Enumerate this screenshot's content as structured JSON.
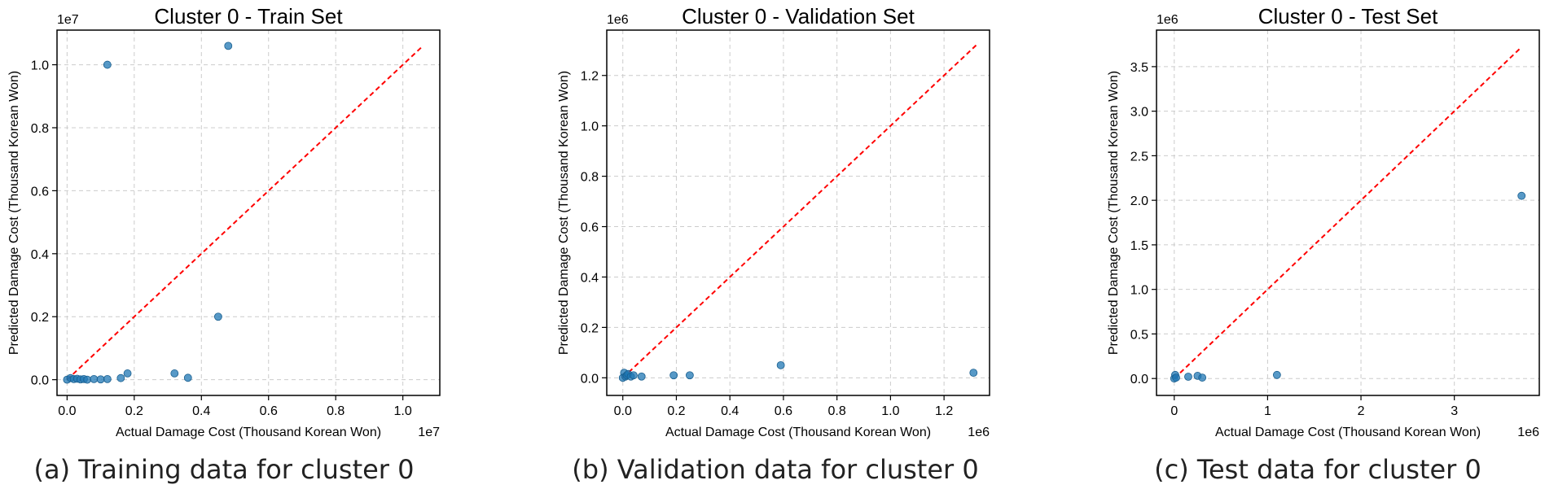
{
  "captions": [
    "(a) Training data for cluster 0",
    "(b) Validation data for cluster 0",
    "(c) Test data for cluster 0"
  ],
  "chart_data": [
    {
      "type": "scatter",
      "title": "Cluster 0 - Train Set",
      "xlabel": "Actual Damage Cost (Thousand Korean Won)",
      "ylabel": "Predicted Damage Cost (Thousand Korean Won)",
      "x_offset_label": "1e7",
      "y_offset_label": "1e7",
      "xlim": [
        -0.03,
        1.11
      ],
      "ylim": [
        -0.05,
        1.11
      ],
      "xticks": [
        0.0,
        0.2,
        0.4,
        0.6,
        0.8,
        1.0
      ],
      "xtick_labels": [
        "0.0",
        "0.2",
        "0.4",
        "0.6",
        "0.8",
        "1.0"
      ],
      "yticks": [
        0.0,
        0.2,
        0.4,
        0.6,
        0.8,
        1.0
      ],
      "ytick_labels": [
        "0.0",
        "0.2",
        "0.4",
        "0.6",
        "0.8",
        "1.0"
      ],
      "grid": true,
      "reference_line": {
        "from": [
          0.0,
          0.0
        ],
        "to": [
          1.06,
          1.06
        ],
        "style": "dashed",
        "color": "#ff0000"
      },
      "point_color": "#1f77b4",
      "points": [
        [
          0.0,
          0.0
        ],
        [
          0.01,
          0.005
        ],
        [
          0.02,
          0.002
        ],
        [
          0.03,
          0.003
        ],
        [
          0.04,
          0.001
        ],
        [
          0.05,
          0.002
        ],
        [
          0.06,
          0.0
        ],
        [
          0.08,
          0.002
        ],
        [
          0.1,
          0.001
        ],
        [
          0.12,
          0.002
        ],
        [
          0.16,
          0.005
        ],
        [
          0.18,
          0.02
        ],
        [
          0.32,
          0.02
        ],
        [
          0.36,
          0.006
        ],
        [
          0.45,
          0.2
        ],
        [
          0.12,
          1.0
        ],
        [
          0.48,
          1.06
        ]
      ]
    },
    {
      "type": "scatter",
      "title": "Cluster 0 - Validation Set",
      "xlabel": "Actual Damage Cost (Thousand Korean Won)",
      "ylabel": "Predicted Damage Cost (Thousand Korean Won)",
      "x_offset_label": "1e6",
      "y_offset_label": "1e6",
      "xlim": [
        -0.06,
        1.37
      ],
      "ylim": [
        -0.07,
        1.38
      ],
      "xticks": [
        0.0,
        0.2,
        0.4,
        0.6,
        0.8,
        1.0,
        1.2
      ],
      "xtick_labels": [
        "0.0",
        "0.2",
        "0.4",
        "0.6",
        "0.8",
        "1.0",
        "1.2"
      ],
      "yticks": [
        0.0,
        0.2,
        0.4,
        0.6,
        0.8,
        1.0,
        1.2
      ],
      "ytick_labels": [
        "0.0",
        "0.2",
        "0.4",
        "0.6",
        "0.8",
        "1.0",
        "1.2"
      ],
      "grid": true,
      "reference_line": {
        "from": [
          0.0,
          0.0
        ],
        "to": [
          1.32,
          1.32
        ],
        "style": "dashed",
        "color": "#ff0000"
      },
      "point_color": "#1f77b4",
      "points": [
        [
          0.0,
          0.0
        ],
        [
          0.005,
          0.02
        ],
        [
          0.01,
          0.005
        ],
        [
          0.015,
          0.01
        ],
        [
          0.02,
          0.015
        ],
        [
          0.03,
          0.005
        ],
        [
          0.04,
          0.01
        ],
        [
          0.07,
          0.005
        ],
        [
          0.19,
          0.01
        ],
        [
          0.25,
          0.01
        ],
        [
          0.59,
          0.05
        ],
        [
          1.31,
          0.02
        ]
      ]
    },
    {
      "type": "scatter",
      "title": "Cluster 0 - Test Set",
      "xlabel": "Actual Damage Cost (Thousand Korean Won)",
      "ylabel": "Predicted Damage Cost (Thousand Korean Won)",
      "x_offset_label": "1e6",
      "y_offset_label": "1e6",
      "xlim": [
        -0.19,
        3.91
      ],
      "ylim": [
        -0.19,
        3.91
      ],
      "xticks": [
        0,
        1,
        2,
        3
      ],
      "xtick_labels": [
        "0",
        "1",
        "2",
        "3"
      ],
      "yticks": [
        0.0,
        0.5,
        1.0,
        1.5,
        2.0,
        2.5,
        3.0,
        3.5
      ],
      "ytick_labels": [
        "0.0",
        "0.5",
        "1.0",
        "1.5",
        "2.0",
        "2.5",
        "3.0",
        "3.5"
      ],
      "grid": true,
      "reference_line": {
        "from": [
          0.0,
          0.0
        ],
        "to": [
          3.72,
          3.72
        ],
        "style": "dashed",
        "color": "#ff0000"
      },
      "point_color": "#1f77b4",
      "points": [
        [
          0.0,
          0.0
        ],
        [
          0.01,
          0.04
        ],
        [
          0.02,
          0.01
        ],
        [
          0.15,
          0.02
        ],
        [
          0.25,
          0.03
        ],
        [
          0.3,
          0.01
        ],
        [
          1.1,
          0.04
        ],
        [
          3.72,
          2.05
        ]
      ]
    }
  ]
}
